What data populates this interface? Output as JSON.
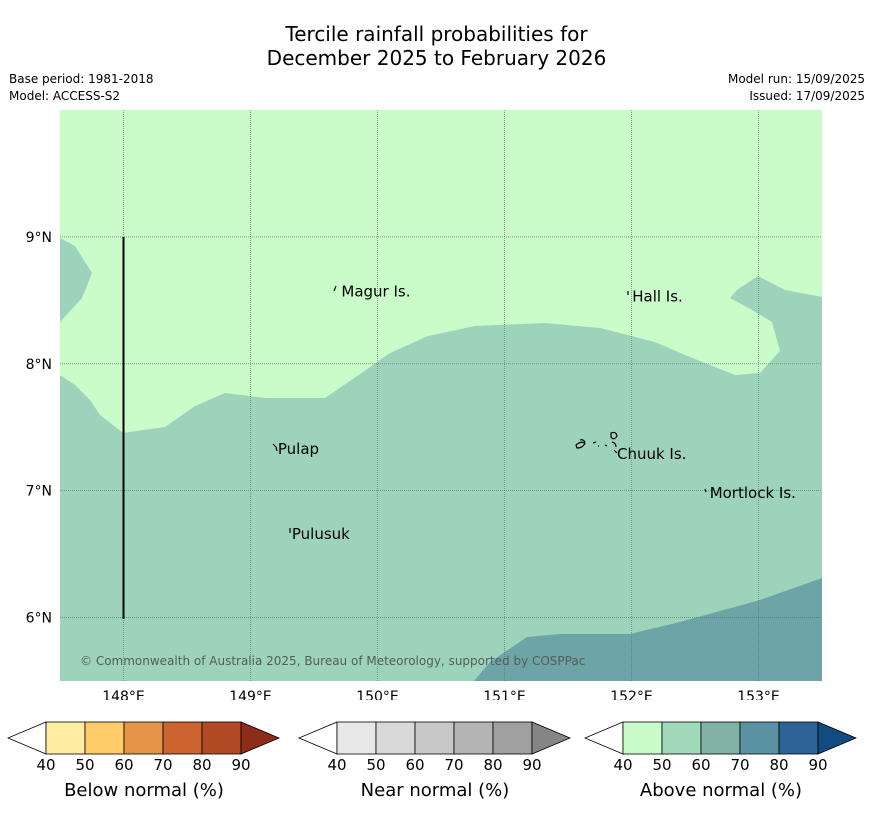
{
  "title": {
    "line1": "Tercile rainfall probabilities for",
    "line2": "December 2025 to February 2026"
  },
  "meta": {
    "base_period": "Base period: 1981-2018",
    "model": "Model: ACCESS-S2",
    "model_run": "Model run: 15/09/2025",
    "issued": "Issued: 17/09/2025"
  },
  "map": {
    "lon_range": [
      147.5,
      153.5
    ],
    "lat_range": [
      5.5,
      10.0
    ],
    "lon_ticks": [
      "148°E",
      "149°E",
      "150°E",
      "151°E",
      "152°E",
      "153°E"
    ],
    "lat_ticks": [
      "6°N",
      "7°N",
      "8°N",
      "9°N"
    ],
    "grid": true,
    "colors": {
      "above_40_50": "#c9fcc9",
      "above_50_60": "#9ed3bb",
      "above_60_70": "#6da4a8",
      "grid": "#5a6e5a",
      "coast": "#000000"
    },
    "islands": [
      {
        "name": "Magur Is.",
        "lon": 149.7,
        "lat": 8.57
      },
      {
        "name": "Hall Is.",
        "lon": 151.99,
        "lat": 8.53
      },
      {
        "name": "Pulap",
        "lon": 149.2,
        "lat": 7.33
      },
      {
        "name": "Chuuk Is.",
        "lon": 151.87,
        "lat": 7.29
      },
      {
        "name": "Mortlock Is.",
        "lon": 152.6,
        "lat": 6.98
      },
      {
        "name": "Pulusuk",
        "lon": 149.31,
        "lat": 6.66
      }
    ],
    "copyright": "© Commonwealth of Australia 2025, Bureau of Meteorology, supported by COSPPac"
  },
  "colorbars": [
    {
      "label": "Below normal (%)",
      "ticks": [
        "40",
        "50",
        "60",
        "70",
        "80",
        "90"
      ],
      "low_color": "#ffffff",
      "colors": [
        "#fdeca2",
        "#fdcb67",
        "#e39446",
        "#cd6331",
        "#b34a26"
      ],
      "high_color": "#8e2c1a"
    },
    {
      "label": "Near normal (%)",
      "ticks": [
        "40",
        "50",
        "60",
        "70",
        "80",
        "90"
      ],
      "low_color": "#ffffff",
      "colors": [
        "#e8e8e8",
        "#d9d9d9",
        "#c8c8c8",
        "#b4b4b4",
        "#a0a0a0"
      ],
      "high_color": "#858585"
    },
    {
      "label": "Above normal (%)",
      "ticks": [
        "40",
        "50",
        "60",
        "70",
        "80",
        "90"
      ],
      "low_color": "#ffffff",
      "colors": [
        "#c9fcc9",
        "#a3d9bb",
        "#82b2a4",
        "#5b93a4",
        "#2d6498"
      ],
      "high_color": "#134b80"
    }
  ]
}
